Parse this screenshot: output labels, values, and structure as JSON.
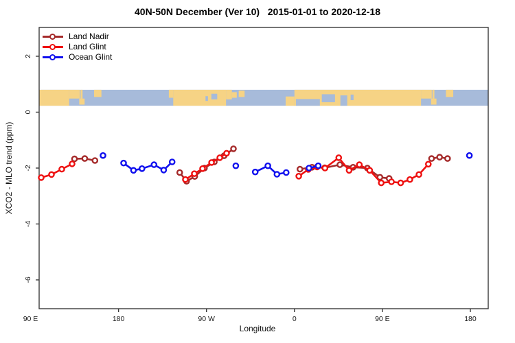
{
  "title": "40N-50N December (Ver 10)   2015-01-01 to 2020-12-18",
  "legend": {
    "items": [
      {
        "label": "Land Nadir",
        "color": "#a52a2a"
      },
      {
        "label": "Land Glint",
        "color": "#ee1010"
      },
      {
        "label": "Ocean Glint",
        "color": "#1010ee"
      }
    ]
  },
  "chart_data": {
    "type": "line",
    "title": "40N-50N December (Ver 10)   2015-01-01 to 2020-12-18",
    "xlabel": "Longitude",
    "ylabel": "XCO2 - MLO trend (ppm)",
    "x_note": "longitude unwrapped eastward: 90=90E, 180=180, 270=90W, 360=0, 450=90E, 540=180",
    "x_ticks": [
      {
        "lon": 90,
        "label": "90 E"
      },
      {
        "lon": 180,
        "label": "180"
      },
      {
        "lon": 270,
        "label": "90 W"
      },
      {
        "lon": 360,
        "label": "0"
      },
      {
        "lon": 450,
        "label": "90 E"
      },
      {
        "lon": 540,
        "label": "180"
      }
    ],
    "y_ticks": [
      {
        "v": 2,
        "label": "2"
      },
      {
        "v": 0,
        "label": "0"
      },
      {
        "v": -2,
        "label": "-2"
      },
      {
        "v": -4,
        "label": "-4"
      },
      {
        "v": -6,
        "label": "-6"
      }
    ],
    "xlim": [
      99,
      558
    ],
    "ylim": [
      -7,
      3
    ],
    "grid": false,
    "legend_position": "top-left",
    "marker": "open-circle",
    "series": [
      {
        "name": "Land Nadir",
        "color": "#a52a2a",
        "segments": [
          [
            [
              135.0,
              -1.67
            ],
            [
              145.4,
              -1.66
            ],
            [
              155.9,
              -1.73
            ]
          ],
          [
            [
              242.6,
              -2.16
            ],
            [
              249.6,
              -2.47
            ],
            [
              258.0,
              -2.3
            ],
            [
              268.0,
              -2.0
            ],
            [
              278.0,
              -1.78
            ],
            [
              288.0,
              -1.56
            ],
            [
              297.6,
              -1.31
            ]
          ],
          [
            [
              365.6,
              -2.04
            ],
            [
              378.0,
              -1.97
            ],
            [
              391.0,
              -1.99
            ],
            [
              406.5,
              -1.88
            ],
            [
              420.0,
              -1.97
            ],
            [
              434.6,
              -2.0
            ],
            [
              447.5,
              -2.33
            ],
            [
              456.9,
              -2.37
            ]
          ],
          [
            [
              500.3,
              -1.66
            ],
            [
              508.5,
              -1.61
            ],
            [
              516.7,
              -1.66
            ]
          ]
        ]
      },
      {
        "name": "Land Glint",
        "color": "#ee1010",
        "segments": [
          [
            [
              100.9,
              -2.34
            ],
            [
              111.4,
              -2.23
            ],
            [
              122.0,
              -2.04
            ],
            [
              132.5,
              -1.85
            ]
          ],
          [
            [
              248.4,
              -2.41
            ],
            [
              257.6,
              -2.2
            ],
            [
              266.0,
              -2.02
            ],
            [
              275.2,
              -1.8
            ],
            [
              283.6,
              -1.63
            ],
            [
              290.6,
              -1.47
            ]
          ],
          [
            [
              364.4,
              -2.29
            ],
            [
              374.2,
              -2.05
            ],
            [
              383.2,
              -1.96
            ],
            [
              391.3,
              -2.0
            ],
            [
              405.3,
              -1.63
            ],
            [
              415.9,
              -2.08
            ],
            [
              426.4,
              -1.88
            ],
            [
              437.0,
              -2.08
            ],
            [
              448.8,
              -2.53
            ],
            [
              459.3,
              -2.49
            ],
            [
              468.7,
              -2.53
            ],
            [
              478.1,
              -2.41
            ],
            [
              487.4,
              -2.23
            ],
            [
              497.0,
              -1.86
            ]
          ]
        ]
      },
      {
        "name": "Ocean Glint",
        "color": "#1010ee",
        "segments": [
          [
            [
              164.1,
              -1.55
            ]
          ],
          [
            [
              185.2,
              -1.82
            ],
            [
              195.3,
              -2.08
            ],
            [
              204.0,
              -2.02
            ],
            [
              216.3,
              -1.88
            ],
            [
              226.2,
              -2.07
            ],
            [
              234.9,
              -1.78
            ]
          ],
          [
            [
              300.0,
              -1.92
            ]
          ],
          [
            [
              319.9,
              -2.14
            ],
            [
              332.8,
              -1.92
            ],
            [
              342.1,
              -2.22
            ],
            [
              351.6,
              -2.16
            ]
          ],
          [
            [
              374.9,
              -2.0
            ],
            [
              384.3,
              -1.92
            ]
          ],
          [
            [
              539.0,
              -1.55
            ]
          ]
        ]
      }
    ],
    "map_strip": {
      "description": "equirectangular 40N-50N land/ocean band drawn across plot between trend values 0.23 and 0.80",
      "value_top": 0.8,
      "value_bottom": 0.23,
      "land_color": "#f6d385",
      "ocean_color": "#a7bbda",
      "land": [
        [
          99.0,
          129.5,
          0.0,
          1.0
        ],
        [
          129.5,
          140.5,
          0.0,
          0.55
        ],
        [
          141.2,
          143.2,
          0.0,
          0.7
        ],
        [
          139.8,
          145.3,
          0.55,
          0.38
        ],
        [
          155.0,
          162.5,
          0.0,
          0.45
        ],
        [
          231.5,
          236.0,
          0.0,
          0.5
        ],
        [
          236.0,
          290.0,
          0.0,
          1.0
        ],
        [
          290.0,
          296.0,
          0.0,
          0.6
        ],
        [
          296.0,
          301.0,
          0.15,
          0.35
        ],
        [
          303.0,
          309.0,
          0.05,
          0.4
        ],
        [
          351.0,
          360.0,
          0.42,
          0.58
        ],
        [
          360.0,
          489.5,
          0.0,
          1.0
        ],
        [
          489.5,
          500.5,
          0.0,
          0.55
        ],
        [
          501.2,
          503.2,
          0.0,
          0.7
        ],
        [
          499.8,
          505.3,
          0.55,
          0.38
        ],
        [
          515.0,
          522.5,
          0.0,
          0.45
        ]
      ],
      "lakes": [
        [
          269.0,
          271.5,
          0.4,
          0.3
        ],
        [
          275.0,
          281.0,
          0.25,
          0.35
        ],
        [
          361.5,
          386.0,
          0.58,
          0.42
        ],
        [
          388.0,
          401.5,
          0.28,
          0.5
        ],
        [
          407.0,
          414.0,
          0.35,
          0.65
        ],
        [
          417.5,
          420.5,
          0.3,
          0.35
        ]
      ]
    }
  }
}
